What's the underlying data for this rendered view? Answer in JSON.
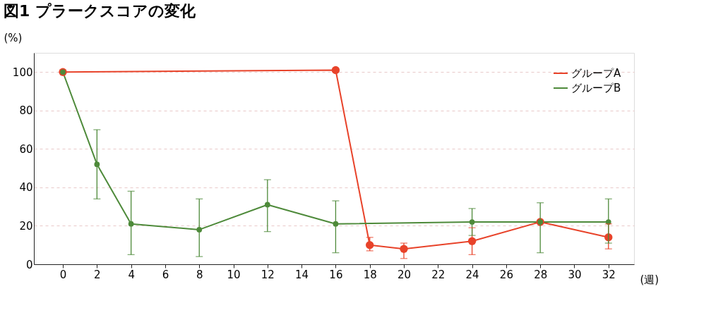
{
  "chart_data": {
    "type": "line",
    "title": "図1  プラークスコアの変化",
    "xlabel": "(週)",
    "ylabel": "(%)",
    "xlim": [
      -1.7,
      33.5
    ],
    "xticks": [
      0,
      2,
      4,
      6,
      8,
      10,
      12,
      14,
      16,
      18,
      20,
      22,
      24,
      26,
      28,
      30,
      32
    ],
    "ylim": [
      0,
      110
    ],
    "yticks": [
      0,
      20,
      40,
      60,
      80,
      100
    ],
    "grid": "y",
    "legend": "top right",
    "marker": "circle",
    "line_style": "solid",
    "series": [
      {
        "name": "グループA",
        "color": "#e8432a",
        "x": [
          0,
          16,
          18,
          20,
          24,
          28,
          32
        ],
        "values": [
          100,
          101,
          10,
          8,
          12,
          22,
          14
        ],
        "errors": [
          null,
          null,
          [
            7,
            14
          ],
          [
            3,
            11
          ],
          [
            5,
            19
          ],
          null,
          [
            8,
            21
          ]
        ]
      },
      {
        "name": "グループB",
        "color": "#4e8a3a",
        "x": [
          0,
          2,
          4,
          8,
          12,
          16,
          24,
          28,
          32
        ],
        "values": [
          100,
          52,
          21,
          18,
          31,
          21,
          22,
          22,
          22
        ],
        "errors": [
          null,
          [
            34,
            70
          ],
          [
            5,
            38
          ],
          [
            4,
            34
          ],
          [
            17,
            44
          ],
          [
            6,
            33
          ],
          [
            15,
            29
          ],
          [
            6,
            32
          ],
          [
            11,
            34
          ]
        ]
      }
    ]
  }
}
